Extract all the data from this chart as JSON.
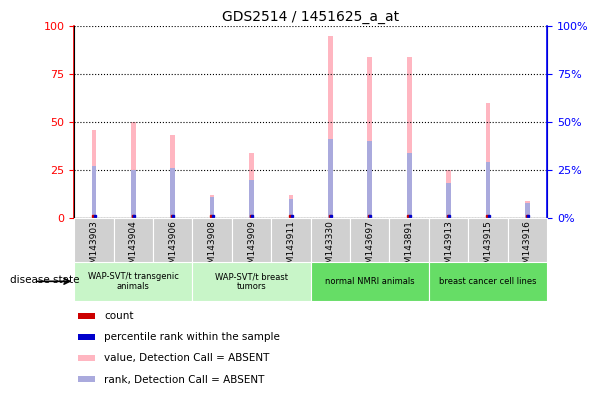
{
  "title": "GDS2514 / 1451625_a_at",
  "samples": [
    "GSM143903",
    "GSM143904",
    "GSM143906",
    "GSM143908",
    "GSM143909",
    "GSM143911",
    "GSM143330",
    "GSM143697",
    "GSM143891",
    "GSM143913",
    "GSM143915",
    "GSM143916"
  ],
  "pink_bars": [
    46,
    50,
    43,
    12,
    34,
    12,
    95,
    84,
    84,
    25,
    60,
    9
  ],
  "blue_bars": [
    27,
    25,
    26,
    11,
    20,
    10,
    41,
    40,
    34,
    18,
    29,
    8
  ],
  "ylim": [
    0,
    100
  ],
  "yticks": [
    0,
    25,
    50,
    75,
    100
  ],
  "yticklabels_left": [
    "0",
    "25",
    "50",
    "75",
    "100"
  ],
  "yticklabels_right": [
    "0%",
    "25%",
    "50%",
    "75%",
    "100%"
  ],
  "pink_color": "#FFB6C1",
  "blue_color": "#AAAADD",
  "red_color": "#CC0000",
  "dark_blue_color": "#0000CC",
  "left_axis_color": "red",
  "right_axis_color": "blue",
  "grid_color": "black",
  "bar_width": 0.12,
  "group_configs": [
    {
      "start": 0,
      "end": 3,
      "label": "WAP-SVT/t transgenic\nanimals",
      "color": "#c8f5c8"
    },
    {
      "start": 3,
      "end": 6,
      "label": "WAP-SVT/t breast\ntumors",
      "color": "#c8f5c8"
    },
    {
      "start": 6,
      "end": 9,
      "label": "normal NMRI animals",
      "color": "#66DD66"
    },
    {
      "start": 9,
      "end": 12,
      "label": "breast cancer cell lines",
      "color": "#66DD66"
    }
  ],
  "disease_state_label": "disease state",
  "legend_items": [
    {
      "label": "count",
      "color": "#CC0000"
    },
    {
      "label": "percentile rank within the sample",
      "color": "#0000CC"
    },
    {
      "label": "value, Detection Call = ABSENT",
      "color": "#FFB6C1"
    },
    {
      "label": "rank, Detection Call = ABSENT",
      "color": "#AAAADD"
    }
  ]
}
